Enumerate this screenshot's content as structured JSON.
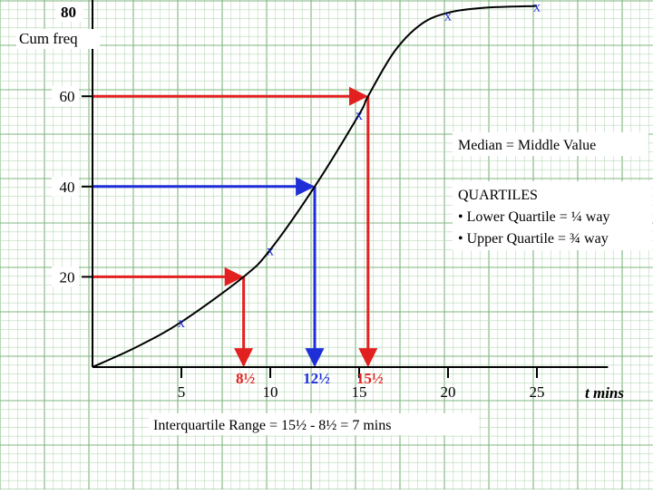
{
  "chart_data": {
    "type": "line",
    "ylabel_top": "80",
    "ylabel": "Cum freq",
    "xlabel": "t mins",
    "xlim": [
      0,
      29
    ],
    "ylim": [
      0,
      80
    ],
    "x_ticks": [
      {
        "value": 5,
        "label": "5"
      },
      {
        "value": 10,
        "label": "10"
      },
      {
        "value": 15,
        "label": "15"
      },
      {
        "value": 20,
        "label": "20"
      },
      {
        "value": 25,
        "label": "25"
      }
    ],
    "y_ticks": [
      {
        "value": 20,
        "label": "20"
      },
      {
        "value": 40,
        "label": "40"
      },
      {
        "value": 60,
        "label": "60"
      }
    ],
    "points": [
      {
        "x": 5,
        "y": 10
      },
      {
        "x": 10,
        "y": 26
      },
      {
        "x": 15,
        "y": 56
      },
      {
        "x": 20,
        "y": 78
      },
      {
        "x": 25,
        "y": 80
      }
    ],
    "curve": [
      {
        "x": 0,
        "y": 0
      },
      {
        "x": 2.5,
        "y": 4.5
      },
      {
        "x": 5,
        "y": 10
      },
      {
        "x": 8.5,
        "y": 20
      },
      {
        "x": 10,
        "y": 26
      },
      {
        "x": 12.5,
        "y": 40
      },
      {
        "x": 15,
        "y": 56
      },
      {
        "x": 15.5,
        "y": 60
      },
      {
        "x": 17,
        "y": 70
      },
      {
        "x": 18.5,
        "y": 76
      },
      {
        "x": 20,
        "y": 78.5
      },
      {
        "x": 22,
        "y": 79.6
      },
      {
        "x": 25,
        "y": 80
      }
    ],
    "guides": [
      {
        "name": "lower-quartile",
        "y": 20,
        "x": 8.5,
        "color": "#e32020",
        "label": "8½"
      },
      {
        "name": "median",
        "y": 40,
        "x": 12.5,
        "color": "#1f2fd8",
        "label": "12½"
      },
      {
        "name": "upper-quartile",
        "y": 60,
        "x": 15.5,
        "color": "#e32020",
        "label": "15½"
      }
    ],
    "annotations": {
      "median": "Median = Middle Value",
      "quartiles_title": "QUARTILES",
      "quartiles_lower": "• Lower Quartile = ¼ way",
      "quartiles_upper": "• Upper Quartile = ¾ way",
      "iqr": "Interquartile Range  = 15½ - 8½ = 7 mins"
    },
    "marker": "x",
    "colors": {
      "grid_minor": "#b9d9b9",
      "grid_major": "#7fb47f",
      "curve": "#000000",
      "marker": "#1f2fd8",
      "label": "#1f2fd8"
    }
  }
}
